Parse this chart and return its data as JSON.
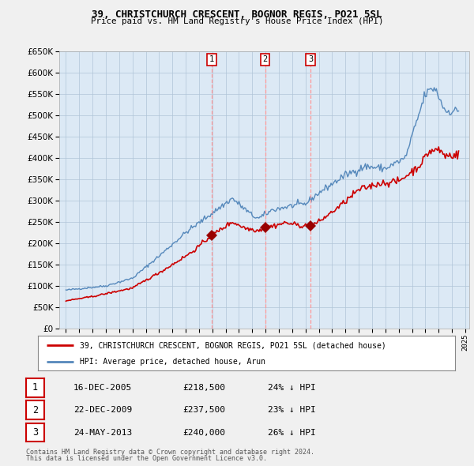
{
  "title": "39, CHRISTCHURCH CRESCENT, BOGNOR REGIS, PO21 5SL",
  "subtitle": "Price paid vs. HM Land Registry's House Price Index (HPI)",
  "ylim": [
    0,
    650000
  ],
  "yticks": [
    0,
    50000,
    100000,
    150000,
    200000,
    250000,
    300000,
    350000,
    400000,
    450000,
    500000,
    550000,
    600000,
    650000
  ],
  "background_color": "#f0f0f0",
  "plot_bg_color": "#dce9f5",
  "grid_color": "#b0c4d8",
  "line1_color": "#cc0000",
  "line2_color": "#5588bb",
  "marker_color": "#990000",
  "vline_color": "#ff9999",
  "trans_years_decimal": [
    2005.958,
    2009.975,
    2013.37
  ],
  "trans_prices": [
    218500,
    237500,
    240000
  ],
  "trans_labels": [
    "1",
    "2",
    "3"
  ],
  "legend1": "39, CHRISTCHURCH CRESCENT, BOGNOR REGIS, PO21 5SL (detached house)",
  "legend2": "HPI: Average price, detached house, Arun",
  "table_rows": [
    {
      "num": "1",
      "date": "16-DEC-2005",
      "price": "£218,500",
      "pct": "24% ↓ HPI"
    },
    {
      "num": "2",
      "date": "22-DEC-2009",
      "price": "£237,500",
      "pct": "23% ↓ HPI"
    },
    {
      "num": "3",
      "date": "24-MAY-2013",
      "price": "£240,000",
      "pct": "26% ↓ HPI"
    }
  ],
  "footnote1": "Contains HM Land Registry data © Crown copyright and database right 2024.",
  "footnote2": "This data is licensed under the Open Government Licence v3.0."
}
